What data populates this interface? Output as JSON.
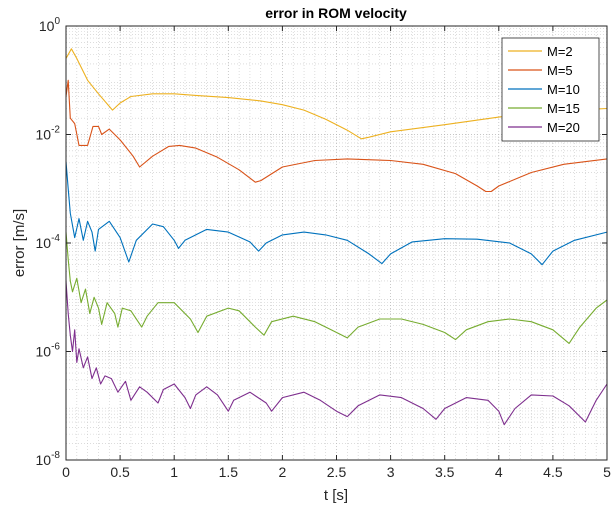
{
  "chart_data": {
    "type": "line",
    "title": "error in ROM velocity",
    "xlabel": "t [s]",
    "ylabel": "error [m/s]",
    "xlim": [
      0,
      5
    ],
    "ylim_exponents": [
      -8,
      0
    ],
    "yscale": "log",
    "grid": true,
    "minor_grid": true,
    "legend_position": "top-right",
    "x_ticks": [
      "0",
      "0.5",
      "1",
      "1.5",
      "2",
      "2.5",
      "3",
      "3.5",
      "4",
      "4.5",
      "5"
    ],
    "y_ticks": [
      {
        "base": "10",
        "exp": "-8",
        "value": -8
      },
      {
        "base": "10",
        "exp": "-6",
        "value": -6
      },
      {
        "base": "10",
        "exp": "-4",
        "value": -4
      },
      {
        "base": "10",
        "exp": "-2",
        "value": -2
      },
      {
        "base": "10",
        "exp": "0",
        "value": 0
      }
    ],
    "series": [
      {
        "name": "M=2",
        "color": "#EDB120",
        "points": [
          [
            0,
            -0.6
          ],
          [
            0.05,
            -0.42
          ],
          [
            0.1,
            -0.6
          ],
          [
            0.2,
            -1.0
          ],
          [
            0.3,
            -1.25
          ],
          [
            0.43,
            -1.55
          ],
          [
            0.5,
            -1.42
          ],
          [
            0.6,
            -1.3
          ],
          [
            0.8,
            -1.25
          ],
          [
            1.0,
            -1.25
          ],
          [
            1.2,
            -1.28
          ],
          [
            1.5,
            -1.32
          ],
          [
            1.8,
            -1.38
          ],
          [
            2.0,
            -1.45
          ],
          [
            2.2,
            -1.55
          ],
          [
            2.4,
            -1.72
          ],
          [
            2.6,
            -1.92
          ],
          [
            2.73,
            -2.08
          ],
          [
            2.8,
            -2.05
          ],
          [
            3.0,
            -1.95
          ],
          [
            3.5,
            -1.82
          ],
          [
            4.0,
            -1.68
          ],
          [
            4.5,
            -1.57
          ],
          [
            5.0,
            -1.52
          ]
        ]
      },
      {
        "name": "M=5",
        "color": "#D95319",
        "points": [
          [
            0,
            -1.3
          ],
          [
            0.02,
            -1.0
          ],
          [
            0.04,
            -1.7
          ],
          [
            0.08,
            -1.8
          ],
          [
            0.12,
            -2.2
          ],
          [
            0.2,
            -2.2
          ],
          [
            0.25,
            -1.85
          ],
          [
            0.3,
            -1.85
          ],
          [
            0.33,
            -2.0
          ],
          [
            0.4,
            -1.9
          ],
          [
            0.5,
            -2.1
          ],
          [
            0.62,
            -2.4
          ],
          [
            0.68,
            -2.6
          ],
          [
            0.8,
            -2.4
          ],
          [
            0.95,
            -2.22
          ],
          [
            1.05,
            -2.2
          ],
          [
            1.2,
            -2.25
          ],
          [
            1.4,
            -2.42
          ],
          [
            1.6,
            -2.65
          ],
          [
            1.75,
            -2.88
          ],
          [
            1.8,
            -2.85
          ],
          [
            2.0,
            -2.6
          ],
          [
            2.3,
            -2.48
          ],
          [
            2.6,
            -2.45
          ],
          [
            3.0,
            -2.48
          ],
          [
            3.3,
            -2.55
          ],
          [
            3.6,
            -2.72
          ],
          [
            3.8,
            -2.95
          ],
          [
            3.88,
            -3.05
          ],
          [
            3.93,
            -3.05
          ],
          [
            4.0,
            -2.95
          ],
          [
            4.3,
            -2.7
          ],
          [
            4.6,
            -2.55
          ],
          [
            5.0,
            -2.45
          ]
        ]
      },
      {
        "name": "M=10",
        "color": "#0072BD",
        "points": [
          [
            0,
            -2.5
          ],
          [
            0.02,
            -3.0
          ],
          [
            0.04,
            -3.45
          ],
          [
            0.08,
            -3.9
          ],
          [
            0.12,
            -3.55
          ],
          [
            0.16,
            -3.95
          ],
          [
            0.2,
            -3.6
          ],
          [
            0.24,
            -3.8
          ],
          [
            0.27,
            -4.15
          ],
          [
            0.3,
            -3.75
          ],
          [
            0.4,
            -3.6
          ],
          [
            0.5,
            -3.9
          ],
          [
            0.58,
            -4.35
          ],
          [
            0.65,
            -3.95
          ],
          [
            0.8,
            -3.65
          ],
          [
            0.9,
            -3.7
          ],
          [
            1.0,
            -3.95
          ],
          [
            1.04,
            -4.1
          ],
          [
            1.1,
            -3.95
          ],
          [
            1.3,
            -3.75
          ],
          [
            1.5,
            -3.8
          ],
          [
            1.7,
            -3.98
          ],
          [
            1.78,
            -4.15
          ],
          [
            1.85,
            -4.0
          ],
          [
            2.0,
            -3.85
          ],
          [
            2.2,
            -3.8
          ],
          [
            2.4,
            -3.85
          ],
          [
            2.6,
            -3.95
          ],
          [
            2.8,
            -4.2
          ],
          [
            2.92,
            -4.38
          ],
          [
            3.0,
            -4.2
          ],
          [
            3.2,
            -3.98
          ],
          [
            3.5,
            -3.92
          ],
          [
            3.8,
            -3.93
          ],
          [
            4.1,
            -4.0
          ],
          [
            4.3,
            -4.2
          ],
          [
            4.4,
            -4.4
          ],
          [
            4.5,
            -4.15
          ],
          [
            4.7,
            -3.95
          ],
          [
            5.0,
            -3.8
          ]
        ]
      },
      {
        "name": "M=15",
        "color": "#77AC30",
        "points": [
          [
            0,
            -3.8
          ],
          [
            0.02,
            -4.3
          ],
          [
            0.04,
            -4.7
          ],
          [
            0.06,
            -4.9
          ],
          [
            0.1,
            -4.65
          ],
          [
            0.14,
            -5.1
          ],
          [
            0.18,
            -4.85
          ],
          [
            0.22,
            -5.3
          ],
          [
            0.26,
            -5.0
          ],
          [
            0.3,
            -5.2
          ],
          [
            0.33,
            -5.5
          ],
          [
            0.38,
            -5.1
          ],
          [
            0.45,
            -5.3
          ],
          [
            0.48,
            -5.55
          ],
          [
            0.52,
            -5.2
          ],
          [
            0.6,
            -5.25
          ],
          [
            0.7,
            -5.55
          ],
          [
            0.75,
            -5.35
          ],
          [
            0.85,
            -5.1
          ],
          [
            1.0,
            -5.1
          ],
          [
            1.15,
            -5.4
          ],
          [
            1.22,
            -5.65
          ],
          [
            1.3,
            -5.35
          ],
          [
            1.5,
            -5.2
          ],
          [
            1.6,
            -5.25
          ],
          [
            1.75,
            -5.55
          ],
          [
            1.83,
            -5.7
          ],
          [
            1.9,
            -5.45
          ],
          [
            2.1,
            -5.35
          ],
          [
            2.3,
            -5.45
          ],
          [
            2.45,
            -5.6
          ],
          [
            2.6,
            -5.75
          ],
          [
            2.7,
            -5.55
          ],
          [
            2.9,
            -5.4
          ],
          [
            3.1,
            -5.4
          ],
          [
            3.3,
            -5.5
          ],
          [
            3.5,
            -5.65
          ],
          [
            3.6,
            -5.78
          ],
          [
            3.7,
            -5.6
          ],
          [
            3.9,
            -5.45
          ],
          [
            4.1,
            -5.4
          ],
          [
            4.3,
            -5.45
          ],
          [
            4.5,
            -5.6
          ],
          [
            4.65,
            -5.85
          ],
          [
            4.75,
            -5.55
          ],
          [
            4.9,
            -5.2
          ],
          [
            5.0,
            -5.05
          ]
        ]
      },
      {
        "name": "M=20",
        "color": "#7E2F8E",
        "points": [
          [
            0,
            -4.7
          ],
          [
            0.02,
            -5.3
          ],
          [
            0.04,
            -5.7
          ],
          [
            0.06,
            -6.0
          ],
          [
            0.08,
            -5.6
          ],
          [
            0.1,
            -6.2
          ],
          [
            0.12,
            -5.95
          ],
          [
            0.16,
            -6.3
          ],
          [
            0.2,
            -6.1
          ],
          [
            0.24,
            -6.5
          ],
          [
            0.28,
            -6.3
          ],
          [
            0.32,
            -6.6
          ],
          [
            0.36,
            -6.45
          ],
          [
            0.42,
            -6.5
          ],
          [
            0.48,
            -6.75
          ],
          [
            0.55,
            -6.55
          ],
          [
            0.6,
            -6.9
          ],
          [
            0.68,
            -6.65
          ],
          [
            0.75,
            -6.75
          ],
          [
            0.85,
            -6.95
          ],
          [
            0.9,
            -6.7
          ],
          [
            1.0,
            -6.6
          ],
          [
            1.1,
            -6.85
          ],
          [
            1.15,
            -7.05
          ],
          [
            1.2,
            -6.8
          ],
          [
            1.3,
            -6.65
          ],
          [
            1.4,
            -6.8
          ],
          [
            1.5,
            -7.1
          ],
          [
            1.55,
            -6.9
          ],
          [
            1.7,
            -6.75
          ],
          [
            1.85,
            -6.95
          ],
          [
            1.9,
            -7.1
          ],
          [
            2.0,
            -6.85
          ],
          [
            2.2,
            -6.75
          ],
          [
            2.35,
            -6.9
          ],
          [
            2.5,
            -7.1
          ],
          [
            2.6,
            -7.2
          ],
          [
            2.7,
            -7.0
          ],
          [
            2.9,
            -6.8
          ],
          [
            3.1,
            -6.85
          ],
          [
            3.3,
            -7.05
          ],
          [
            3.42,
            -7.25
          ],
          [
            3.5,
            -7.05
          ],
          [
            3.7,
            -6.85
          ],
          [
            3.9,
            -6.9
          ],
          [
            4.0,
            -7.1
          ],
          [
            4.05,
            -7.35
          ],
          [
            4.15,
            -7.05
          ],
          [
            4.3,
            -6.8
          ],
          [
            4.5,
            -6.82
          ],
          [
            4.65,
            -7.0
          ],
          [
            4.8,
            -7.3
          ],
          [
            4.9,
            -6.9
          ],
          [
            5.0,
            -6.6
          ]
        ]
      }
    ]
  }
}
